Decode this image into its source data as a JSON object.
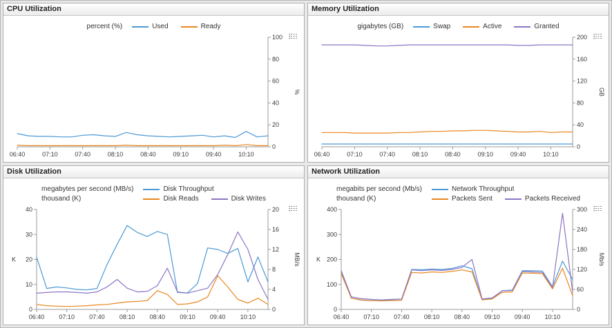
{
  "colors": {
    "blue": "#4a98d5",
    "orange": "#e8861c",
    "purple": "#8b74c4",
    "axis": "#9a9a9a",
    "tick_text": "#3a3a3a"
  },
  "chart_data": [
    {
      "type": "line",
      "title": "CPU Utilization",
      "x_tick_labels": [
        "06:40",
        "07:10",
        "07:40",
        "08:10",
        "08:40",
        "09:10",
        "09:40",
        "10:10"
      ],
      "x_start": "06:40",
      "x_step_minutes": 10,
      "x_tick_every": 3,
      "legend_rows": [
        {
          "unit_label": "percent (%)",
          "items": [
            {
              "name": "Used",
              "color": "#4a98d5"
            },
            {
              "name": "Ready",
              "color": "#e8861c"
            }
          ]
        }
      ],
      "axes": {
        "right": {
          "title": "%",
          "min": 0,
          "max": 100,
          "ticks": [
            0,
            20,
            40,
            60,
            80,
            100
          ]
        }
      },
      "series": [
        {
          "name": "Used",
          "axis": "right",
          "color": "#4a98d5",
          "values": [
            12,
            10,
            9.5,
            9.5,
            9,
            9,
            10.5,
            11,
            10,
            9.5,
            13,
            11,
            10,
            9.5,
            9,
            9.5,
            10,
            10.5,
            9,
            10,
            8.5,
            14,
            9,
            10
          ]
        },
        {
          "name": "Ready",
          "axis": "right",
          "color": "#e8861c",
          "values": [
            1.5,
            1,
            1,
            1,
            1,
            1,
            1,
            1,
            1,
            1,
            1.5,
            1,
            1,
            1,
            1,
            1,
            1,
            1,
            1,
            1.5,
            1,
            2,
            1,
            1
          ]
        }
      ]
    },
    {
      "type": "line",
      "title": "Memory Utilization",
      "x_tick_labels": [
        "06:40",
        "07:10",
        "07:40",
        "08:10",
        "08:40",
        "09:10",
        "09:40",
        "10:10"
      ],
      "x_start": "06:40",
      "x_step_minutes": 10,
      "x_tick_every": 3,
      "legend_rows": [
        {
          "unit_label": "gigabytes (GB)",
          "items": [
            {
              "name": "Swap",
              "color": "#4a98d5"
            },
            {
              "name": "Active",
              "color": "#e8861c"
            },
            {
              "name": "Granted",
              "color": "#8b74c4"
            }
          ]
        }
      ],
      "axes": {
        "right": {
          "title": "GB",
          "min": 0,
          "max": 200,
          "ticks": [
            0,
            40,
            80,
            120,
            160,
            200
          ]
        }
      },
      "series": [
        {
          "name": "Swap",
          "axis": "right",
          "color": "#4a98d5",
          "values": [
            5,
            5,
            5,
            5,
            5,
            5,
            5,
            5,
            5,
            5,
            5,
            5,
            5,
            5,
            5,
            5,
            5,
            5,
            5,
            5,
            5,
            5,
            5,
            5
          ]
        },
        {
          "name": "Active",
          "axis": "right",
          "color": "#e8861c",
          "values": [
            26,
            26,
            26,
            25,
            25,
            25,
            25,
            26,
            26,
            27,
            28,
            28,
            29,
            29,
            30,
            30,
            29,
            28,
            27,
            27,
            28,
            26,
            27,
            27
          ]
        },
        {
          "name": "Granted",
          "axis": "right",
          "color": "#8b74c4",
          "values": [
            186,
            186,
            186,
            186,
            185,
            184,
            184,
            185,
            186,
            186,
            186,
            186,
            186,
            186,
            186,
            186,
            186,
            186,
            185,
            185,
            186,
            186,
            186,
            186
          ]
        }
      ]
    },
    {
      "type": "line",
      "title": "Disk Utilization",
      "x_tick_labels": [
        "06:40",
        "07:10",
        "07:40",
        "08:10",
        "08:40",
        "09:10",
        "09:40",
        "10:10"
      ],
      "x_start": "06:40",
      "x_step_minutes": 10,
      "x_tick_every": 3,
      "legend_rows": [
        {
          "unit_label": "megabytes per second (MB/s)",
          "items": [
            {
              "name": "Disk Throughput",
              "color": "#4a98d5"
            }
          ]
        },
        {
          "unit_label": "thousand (K)",
          "items": [
            {
              "name": "Disk Reads",
              "color": "#e8861c"
            },
            {
              "name": "Disk Writes",
              "color": "#8b74c4"
            }
          ]
        }
      ],
      "axes": {
        "left": {
          "title": "K",
          "min": 0,
          "max": 40,
          "ticks": [
            0,
            10,
            20,
            30,
            40
          ]
        },
        "right": {
          "title": "MB/s",
          "min": 0,
          "max": 20,
          "ticks": [
            0,
            4,
            8,
            12,
            16,
            20
          ]
        }
      },
      "series": [
        {
          "name": "Disk Throughput",
          "axis": "right",
          "color": "#4a98d5",
          "values": [
            10.5,
            4.2,
            4.5,
            4.3,
            4.0,
            3.9,
            4.2,
            9.0,
            13.0,
            16.8,
            15.4,
            14.6,
            15.6,
            15.0,
            3.4,
            3.3,
            5.2,
            12.3,
            12.0,
            11.2,
            12.2,
            5.5,
            10.5,
            5.5
          ]
        },
        {
          "name": "Disk Reads",
          "axis": "left",
          "color": "#e8861c",
          "values": [
            2.0,
            1.5,
            1.3,
            1.2,
            1.3,
            1.5,
            1.8,
            2.0,
            2.5,
            3.0,
            3.2,
            3.5,
            7.5,
            6.0,
            2.0,
            2.2,
            3.0,
            5.0,
            13.5,
            9.0,
            4.0,
            2.5,
            4.5,
            2.0
          ]
        },
        {
          "name": "Disk Writes",
          "axis": "left",
          "color": "#8b74c4",
          "values": [
            6.5,
            6.8,
            7.0,
            7.0,
            6.8,
            6.5,
            7.0,
            9.0,
            12.0,
            8.5,
            7.0,
            7.2,
            9.5,
            16.5,
            7.0,
            6.5,
            7.5,
            8.5,
            14.0,
            22.0,
            31.0,
            24.0,
            12.0,
            4.0
          ]
        }
      ]
    },
    {
      "type": "line",
      "title": "Network Utilization",
      "x_tick_labels": [
        "06:40",
        "07:10",
        "07:40",
        "08:10",
        "08:40",
        "09:10",
        "09:40",
        "10:10"
      ],
      "x_start": "06:40",
      "x_step_minutes": 10,
      "x_tick_every": 3,
      "legend_rows": [
        {
          "unit_label": "megabits per second (Mb/s)",
          "items": [
            {
              "name": "Network Throughput",
              "color": "#4a98d5"
            }
          ]
        },
        {
          "unit_label": "thousand (K)",
          "items": [
            {
              "name": "Packets Sent",
              "color": "#e8861c"
            },
            {
              "name": "Packets Received",
              "color": "#8b74c4"
            }
          ]
        }
      ],
      "axes": {
        "left": {
          "title": "K",
          "min": 0,
          "max": 400,
          "ticks": [
            0,
            100,
            200,
            300,
            400
          ]
        },
        "right": {
          "title": "Mb/s",
          "min": 0,
          "max": 300,
          "ticks": [
            0,
            60,
            120,
            180,
            240,
            300
          ]
        }
      },
      "series": [
        {
          "name": "Network Throughput",
          "axis": "right",
          "color": "#4a98d5",
          "values": [
            112,
            34,
            28,
            26,
            26,
            27,
            28,
            120,
            119,
            121,
            120,
            123,
            131,
            122,
            30,
            33,
            56,
            58,
            116,
            116,
            115,
            68,
            145,
            90
          ]
        },
        {
          "name": "Packets Sent",
          "axis": "left",
          "color": "#e8861c",
          "values": [
            143,
            45,
            38,
            35,
            34,
            35,
            37,
            148,
            146,
            150,
            148,
            152,
            158,
            150,
            38,
            42,
            68,
            70,
            146,
            145,
            143,
            82,
            165,
            55
          ]
        },
        {
          "name": "Packets Received",
          "axis": "left",
          "color": "#8b74c4",
          "values": [
            155,
            50,
            43,
            40,
            38,
            40,
            42,
            158,
            155,
            158,
            156,
            160,
            168,
            200,
            42,
            46,
            74,
            76,
            152,
            150,
            148,
            88,
            385,
            70
          ]
        }
      ]
    }
  ]
}
